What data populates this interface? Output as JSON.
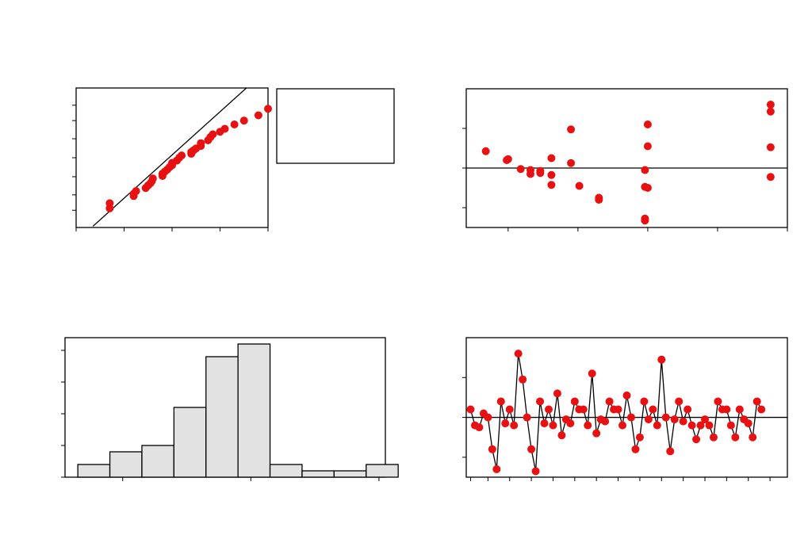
{
  "colors": {
    "point": "#e81010",
    "bar_fill": "#e2e2e2",
    "line": "#000000",
    "background": "#ffffff"
  },
  "chart_data": [
    {
      "id": "normal-probability-plot",
      "type": "scatter",
      "title": "",
      "xlabel": "",
      "ylabel": "",
      "xlim": [
        -3,
        1
      ],
      "ylim": [
        0.001,
        0.999
      ],
      "x_ticks": [
        -3,
        -2,
        -1,
        0,
        1
      ],
      "y_tick_probs": [
        0.01,
        0.05,
        0.2,
        0.5,
        0.8,
        0.95,
        0.99
      ],
      "points": [
        [
          -2.3,
          0.0125
        ],
        [
          -2.3,
          0.022
        ],
        [
          -1.8,
          0.045
        ],
        [
          -1.8,
          0.055
        ],
        [
          -1.75,
          0.07
        ],
        [
          -1.55,
          0.09
        ],
        [
          -1.5,
          0.11
        ],
        [
          -1.45,
          0.13
        ],
        [
          -1.42,
          0.15
        ],
        [
          -1.4,
          0.18
        ],
        [
          -1.2,
          0.21
        ],
        [
          -1.2,
          0.24
        ],
        [
          -1.15,
          0.27
        ],
        [
          -1.1,
          0.3
        ],
        [
          -1.05,
          0.34
        ],
        [
          -1.0,
          0.37
        ],
        [
          -1.0,
          0.41
        ],
        [
          -0.9,
          0.45
        ],
        [
          -0.85,
          0.5
        ],
        [
          -0.8,
          0.54
        ],
        [
          -0.6,
          0.57
        ],
        [
          -0.6,
          0.6
        ],
        [
          -0.55,
          0.63
        ],
        [
          -0.5,
          0.66
        ],
        [
          -0.4,
          0.7
        ],
        [
          -0.4,
          0.74
        ],
        [
          -0.25,
          0.78
        ],
        [
          -0.2,
          0.82
        ],
        [
          -0.15,
          0.85
        ],
        [
          0.0,
          0.875
        ],
        [
          0.1,
          0.9
        ],
        [
          0.3,
          0.93
        ],
        [
          0.5,
          0.95
        ],
        [
          0.8,
          0.97
        ],
        [
          1.0,
          0.985
        ]
      ],
      "fit_line": [
        [
          -2.65,
          0.0012
        ],
        [
          0.55,
          0.999
        ]
      ],
      "legend": {
        "position": "right",
        "entries": []
      }
    },
    {
      "id": "residuals-vs-fitted",
      "type": "scatter",
      "title": "",
      "xlabel": "",
      "ylabel": "",
      "xlim": [
        0,
        23
      ],
      "ylim": [
        -3,
        4
      ],
      "x_ticks": [
        3,
        8,
        13,
        18,
        23
      ],
      "y_ticks": [
        -2,
        0,
        2
      ],
      "reference_line": 0,
      "points": [
        [
          1.4,
          0.85
        ],
        [
          2.9,
          0.4
        ],
        [
          3.0,
          0.45
        ],
        [
          3.9,
          -0.05
        ],
        [
          4.6,
          -0.1
        ],
        [
          4.6,
          -0.3
        ],
        [
          5.3,
          -0.15
        ],
        [
          5.3,
          -0.25
        ],
        [
          6.1,
          0.5
        ],
        [
          6.1,
          -0.35
        ],
        [
          6.1,
          -0.85
        ],
        [
          7.5,
          1.95
        ],
        [
          7.5,
          0.25
        ],
        [
          8.1,
          -0.9
        ],
        [
          9.5,
          -1.5
        ],
        [
          9.5,
          -1.6
        ],
        [
          12.8,
          -0.1
        ],
        [
          12.8,
          -0.95
        ],
        [
          12.8,
          -2.55
        ],
        [
          12.8,
          -2.65
        ],
        [
          13.0,
          2.2
        ],
        [
          13.0,
          1.1
        ],
        [
          13.0,
          -1.0
        ],
        [
          21.8,
          3.2
        ],
        [
          21.8,
          2.85
        ],
        [
          21.8,
          1.05
        ],
        [
          21.8,
          -0.45
        ]
      ]
    },
    {
      "id": "histogram",
      "type": "bar",
      "title": "",
      "xlabel": "",
      "ylabel": "",
      "xlim": [
        -2.9,
        2.1
      ],
      "ylim": [
        0,
        11
      ],
      "x_ticks": [
        -2,
        0,
        2
      ],
      "y_ticks": [
        0,
        2.5,
        5,
        7.5,
        10
      ],
      "bins": [
        {
          "start": -2.7,
          "end": -2.2,
          "count": 1
        },
        {
          "start": -2.2,
          "end": -1.7,
          "count": 2
        },
        {
          "start": -1.7,
          "end": -1.2,
          "count": 2.5
        },
        {
          "start": -1.2,
          "end": -0.7,
          "count": 5.5
        },
        {
          "start": -0.7,
          "end": -0.2,
          "count": 9.5
        },
        {
          "start": -0.2,
          "end": 0.3,
          "count": 10.5
        },
        {
          "start": 0.3,
          "end": 0.8,
          "count": 1
        },
        {
          "start": 0.8,
          "end": 1.3,
          "count": 0.5
        },
        {
          "start": 1.3,
          "end": 1.8,
          "count": 0.5
        },
        {
          "start": 1.8,
          "end": 2.3,
          "count": 1
        }
      ]
    },
    {
      "id": "residuals-vs-order",
      "type": "line",
      "title": "",
      "xlabel": "",
      "ylabel": "",
      "xlim": [
        0,
        74
      ],
      "ylim": [
        -3,
        4
      ],
      "x_ticks": [
        1,
        5,
        10,
        15,
        20,
        25,
        30,
        35,
        40,
        45,
        50,
        55,
        60,
        65,
        70
      ],
      "y_ticks": [
        -2,
        0,
        2
      ],
      "reference_line": 0,
      "values": [
        0.4,
        -0.4,
        -0.5,
        0.2,
        0,
        -1.6,
        -2.6,
        0.8,
        -0.3,
        0.4,
        -0.4,
        3.2,
        1.9,
        0,
        -1.6,
        -2.7,
        0.8,
        -0.3,
        0.4,
        -0.4,
        1.2,
        -0.9,
        -0.1,
        -0.3,
        0.8,
        0.4,
        0.4,
        -0.4,
        2.2,
        -0.8,
        -0.1,
        -0.2,
        0.8,
        0.4,
        0.4,
        -0.4,
        1.1,
        0,
        -1.6,
        -1,
        0.8,
        -0.1,
        0.4,
        -0.4,
        2.9,
        0,
        -1.7,
        -0.1,
        0.8,
        -0.2,
        0.4,
        -0.4,
        -1.1,
        -0.4,
        -0.1,
        -0.4,
        -1,
        0.8,
        0.4,
        0.4,
        -0.4,
        -1,
        0.4,
        -0.1,
        -0.3,
        -1,
        0.8,
        0.4
      ]
    }
  ]
}
